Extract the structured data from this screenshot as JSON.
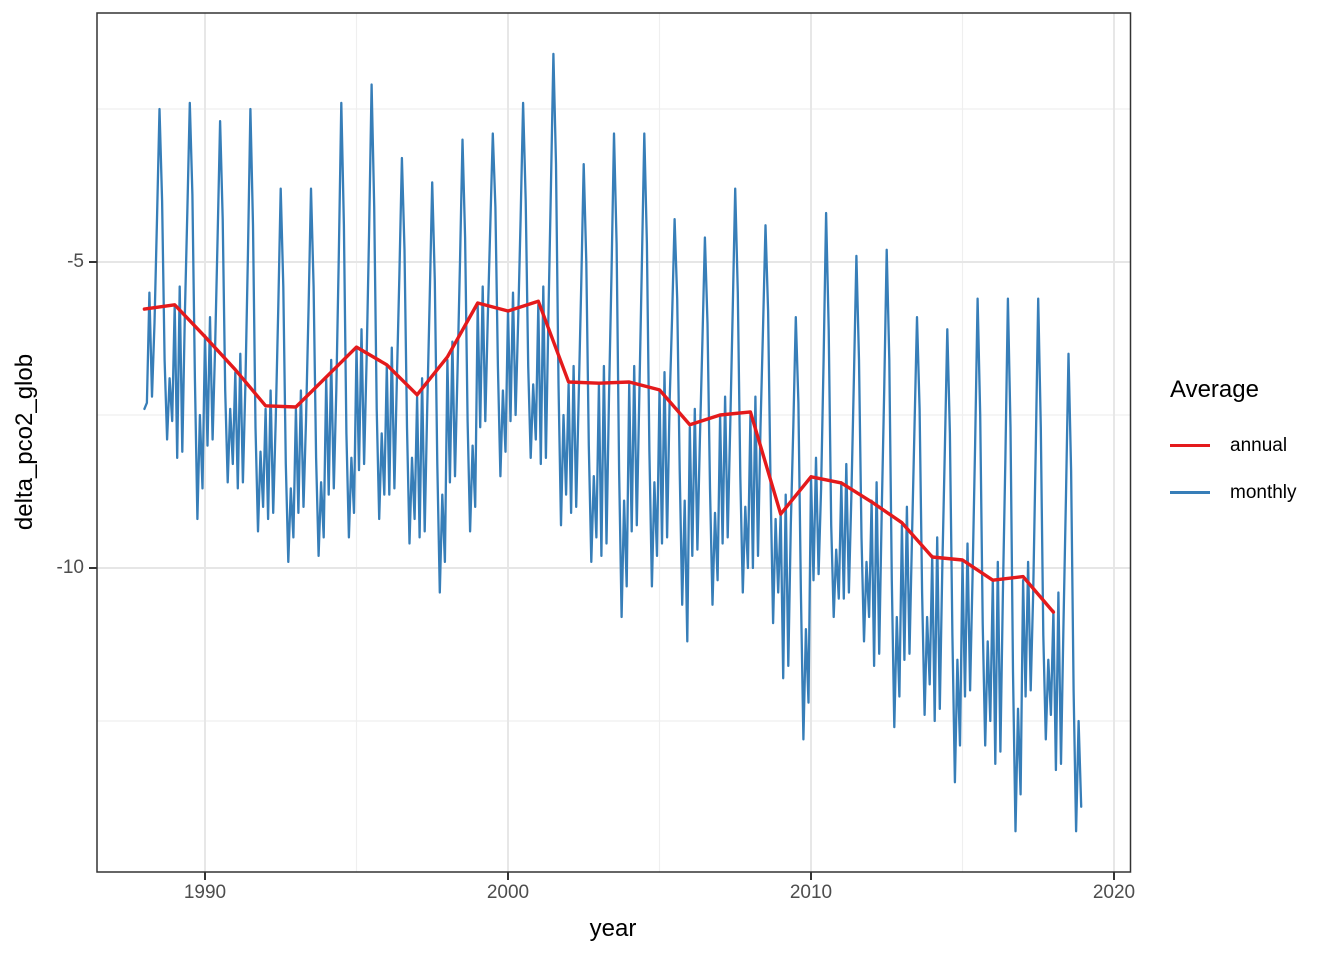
{
  "axes": {
    "x_label": "year",
    "y_label": "delta_pco2_glob",
    "x_tick_labels": [
      "1990",
      "2000",
      "2010",
      "2020"
    ],
    "y_tick_labels": [
      "-5",
      "-10"
    ]
  },
  "legend": {
    "title": "Average",
    "entries": [
      {
        "label": "annual",
        "color": "#E41A1C"
      },
      {
        "label": "monthly",
        "color": "#377EB8"
      }
    ]
  },
  "style": {
    "annual_color": "#E41A1C",
    "monthly_color": "#377EB8",
    "major_grid_color": "#e6e6e6",
    "minor_grid_color": "#efefef",
    "panel_border_color": "#333333",
    "tick_color": "#333333",
    "tick_text_color": "#4d4d4d"
  },
  "chart_data": {
    "type": "line",
    "title": "",
    "xlabel": "year",
    "ylabel": "delta_pco2_glob",
    "x_ticks": [
      1990,
      2000,
      2010,
      2020
    ],
    "x_minor_gridlines": [
      1995,
      2005,
      2015
    ],
    "y_ticks": [
      -5,
      -10
    ],
    "y_minor_gridlines": [
      -2.5,
      -7.5,
      -12.5
    ],
    "x_range_years": [
      1986.45,
      2020.55
    ],
    "y_range": [
      -15.05,
      -0.95
    ],
    "grid": true,
    "legend_title": "Average",
    "legend_position": "right",
    "series": [
      {
        "name": "annual",
        "color": "#E41A1C",
        "x_start": 1988,
        "x_step": 1,
        "values": [
          -5.77,
          -5.7,
          -6.22,
          -6.76,
          -7.35,
          -7.37,
          -6.88,
          -6.39,
          -6.68,
          -7.17,
          -6.55,
          -5.67,
          -5.8,
          -5.64,
          -6.96,
          -6.98,
          -6.96,
          -7.09,
          -7.66,
          -7.5,
          -7.45,
          -9.12,
          -8.51,
          -8.61,
          -8.92,
          -9.26,
          -9.82,
          -9.87,
          -10.2,
          -10.14,
          -10.72
        ]
      },
      {
        "name": "monthly",
        "color": "#377EB8",
        "x_start": 1988,
        "x_step": 0.0833333,
        "values": [
          -7.4,
          -7.3,
          -5.5,
          -7.2,
          -6.0,
          -4.3,
          -2.5,
          -4.0,
          -6.6,
          -7.9,
          -6.9,
          -7.6,
          -5.7,
          -8.2,
          -5.4,
          -8.1,
          -5.9,
          -4.2,
          -2.4,
          -3.9,
          -6.9,
          -9.2,
          -7.5,
          -8.7,
          -6.2,
          -8.0,
          -5.9,
          -7.9,
          -6.4,
          -4.6,
          -2.7,
          -4.3,
          -7.1,
          -8.6,
          -7.4,
          -8.3,
          -6.8,
          -8.7,
          -6.5,
          -8.6,
          -7.0,
          -4.9,
          -2.5,
          -4.4,
          -7.7,
          -9.4,
          -8.1,
          -9.0,
          -7.4,
          -9.2,
          -7.1,
          -9.1,
          -7.6,
          -5.8,
          -3.8,
          -5.4,
          -8.3,
          -9.9,
          -8.7,
          -9.5,
          -7.4,
          -9.1,
          -7.1,
          -9.0,
          -7.6,
          -5.8,
          -3.8,
          -5.4,
          -8.2,
          -9.8,
          -8.6,
          -9.5,
          -6.9,
          -8.8,
          -6.6,
          -8.7,
          -7.1,
          -4.9,
          -2.4,
          -4.4,
          -7.8,
          -9.5,
          -8.2,
          -9.1,
          -6.4,
          -8.4,
          -6.1,
          -8.3,
          -6.6,
          -4.5,
          -2.1,
          -4.1,
          -7.4,
          -9.2,
          -7.8,
          -8.8,
          -6.7,
          -8.8,
          -6.4,
          -8.7,
          -6.9,
          -5.2,
          -3.3,
          -4.8,
          -7.7,
          -9.6,
          -8.2,
          -9.2,
          -7.2,
          -9.5,
          -6.9,
          -9.4,
          -7.4,
          -5.6,
          -3.7,
          -5.3,
          -8.3,
          -10.4,
          -8.8,
          -9.9,
          -6.6,
          -8.6,
          -6.3,
          -8.5,
          -6.8,
          -5.0,
          -3.0,
          -4.6,
          -7.6,
          -9.4,
          -8.0,
          -9.0,
          -5.7,
          -7.7,
          -5.4,
          -7.6,
          -5.9,
          -4.4,
          -2.9,
          -4.1,
          -6.7,
          -8.5,
          -7.1,
          -8.1,
          -5.8,
          -7.6,
          -5.5,
          -7.5,
          -6.0,
          -4.3,
          -2.4,
          -4.0,
          -6.7,
          -8.2,
          -7.0,
          -7.9,
          -5.7,
          -8.3,
          -5.4,
          -8.2,
          -5.9,
          -3.8,
          -1.6,
          -3.4,
          -7.0,
          -9.3,
          -7.5,
          -8.8,
          -7.0,
          -9.1,
          -6.7,
          -9.0,
          -7.2,
          -5.4,
          -3.4,
          -5.0,
          -8.0,
          -9.9,
          -8.5,
          -9.5,
          -7.0,
          -9.8,
          -6.7,
          -9.6,
          -7.2,
          -5.2,
          -2.9,
          -4.7,
          -8.4,
          -10.8,
          -8.9,
          -10.3,
          -7.0,
          -9.4,
          -6.7,
          -9.3,
          -7.2,
          -5.1,
          -2.9,
          -4.7,
          -8.1,
          -10.3,
          -8.6,
          -9.8,
          -7.1,
          -9.6,
          -6.8,
          -9.5,
          -7.3,
          -5.9,
          -4.3,
          -5.6,
          -8.4,
          -10.6,
          -8.9,
          -11.2,
          -7.7,
          -9.8,
          -7.4,
          -9.7,
          -7.9,
          -6.3,
          -4.6,
          -6.0,
          -8.7,
          -10.6,
          -9.1,
          -10.2,
          -7.5,
          -9.6,
          -7.2,
          -9.5,
          -7.7,
          -5.8,
          -3.8,
          -5.5,
          -8.5,
          -10.4,
          -9.0,
          -10.0,
          -7.5,
          -10.0,
          -7.2,
          -9.8,
          -7.7,
          -6.1,
          -4.4,
          -5.8,
          -8.7,
          -10.9,
          -9.2,
          -10.4,
          -9.1,
          -11.8,
          -8.8,
          -11.6,
          -9.3,
          -7.7,
          -5.9,
          -7.3,
          -10.4,
          -12.8,
          -11.0,
          -12.2,
          -8.5,
          -10.2,
          -8.2,
          -10.1,
          -8.7,
          -6.6,
          -4.2,
          -6.1,
          -9.3,
          -10.8,
          -9.7,
          -10.5,
          -8.6,
          -10.5,
          -8.3,
          -10.4,
          -8.8,
          -6.9,
          -4.9,
          -6.6,
          -9.5,
          -11.2,
          -9.9,
          -10.8,
          -8.9,
          -11.6,
          -8.6,
          -11.4,
          -9.1,
          -7.1,
          -4.8,
          -6.6,
          -10.2,
          -12.6,
          -10.8,
          -12.1,
          -9.3,
          -11.5,
          -9.0,
          -11.4,
          -9.5,
          -7.7,
          -5.9,
          -7.4,
          -10.4,
          -12.4,
          -10.8,
          -11.9,
          -9.8,
          -12.5,
          -9.5,
          -12.3,
          -10.0,
          -8.1,
          -6.1,
          -7.8,
          -11.1,
          -13.5,
          -11.5,
          -12.9,
          -9.9,
          -12.1,
          -9.6,
          -12.0,
          -10.1,
          -8.0,
          -5.6,
          -7.5,
          -10.9,
          -12.9,
          -11.2,
          -12.5,
          -10.2,
          -13.2,
          -9.9,
          -13.0,
          -10.4,
          -8.2,
          -5.6,
          -7.7,
          -11.7,
          -14.3,
          -12.3,
          -13.7,
          -10.2,
          -12.1,
          -9.9,
          -12.0,
          -10.4,
          -8.1,
          -5.6,
          -7.7,
          -11.1,
          -12.8,
          -11.5,
          -12.4,
          -10.7,
          -13.3,
          -10.4,
          -13.2,
          -10.9,
          -8.8,
          -6.5,
          -8.4,
          -12.0,
          -14.3,
          -12.5,
          -13.9
        ]
      }
    ]
  }
}
